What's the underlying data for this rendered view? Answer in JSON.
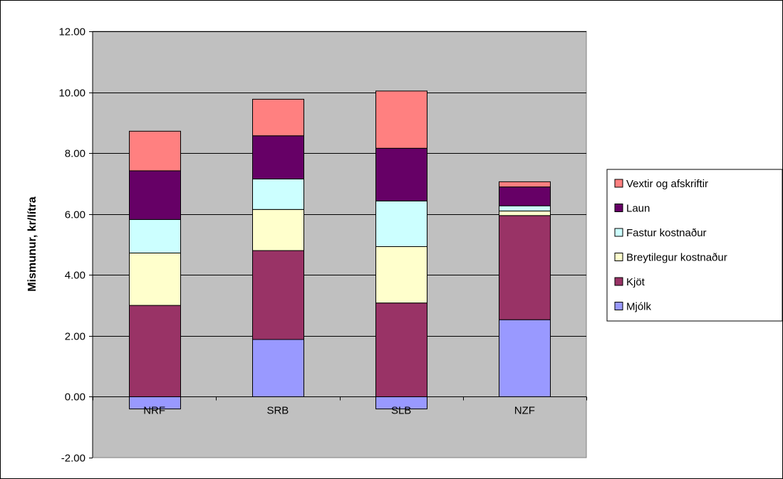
{
  "chart_data": {
    "type": "bar",
    "stacked": true,
    "title": "",
    "xlabel": "",
    "ylabel": "Mismunur, kr/lítra",
    "categories": [
      "NRF",
      "SRB",
      "SLB",
      "NZF"
    ],
    "ylim": [
      -2,
      12
    ],
    "yticks": [
      -2,
      0,
      2,
      4,
      6,
      8,
      10,
      12
    ],
    "ytick_labels": [
      "-2.00",
      "0.00",
      "2.00",
      "4.00",
      "6.00",
      "8.00",
      "10.00",
      "12.00"
    ],
    "grid": true,
    "legend_position": "right",
    "plot_background": "#c0c0c0",
    "series": [
      {
        "name": "Mjólk",
        "color": "#9999ff",
        "values": [
          -0.4,
          1.88,
          -0.4,
          2.53
        ]
      },
      {
        "name": "Kjöt",
        "color": "#993366",
        "values": [
          3.0,
          2.92,
          3.08,
          3.42
        ]
      },
      {
        "name": "Breytilegur kostnaður",
        "color": "#ffffcc",
        "values": [
          1.72,
          1.35,
          1.85,
          0.15
        ]
      },
      {
        "name": "Fastur kostnaður",
        "color": "#ccffff",
        "values": [
          1.1,
          1.0,
          1.5,
          0.17
        ]
      },
      {
        "name": "Laun",
        "color": "#660066",
        "values": [
          1.6,
          1.42,
          1.73,
          0.62
        ]
      },
      {
        "name": "Vextir og afskriftir",
        "color": "#ff8080",
        "values": [
          1.3,
          1.2,
          1.88,
          0.17
        ]
      }
    ]
  }
}
